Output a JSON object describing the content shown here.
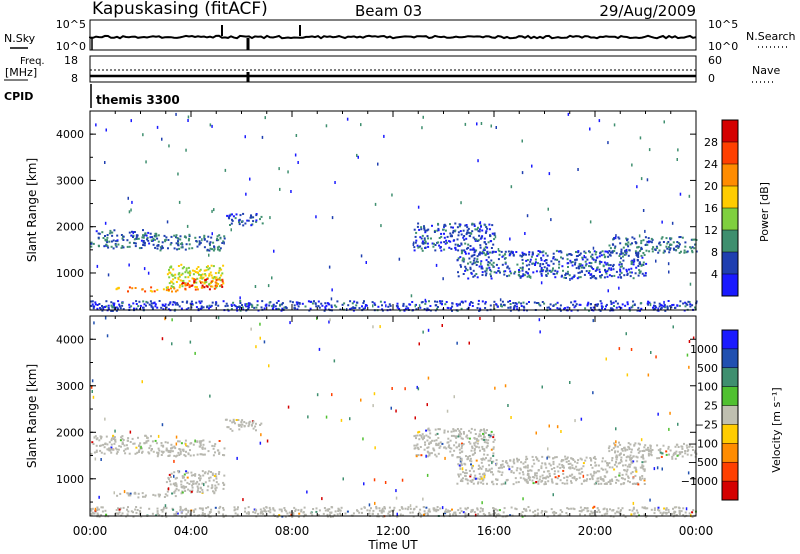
{
  "header": {
    "title": "Kapuskasing (fitACF)",
    "beam": "Beam 03",
    "date": "29/Aug/2009"
  },
  "noise_panel": {
    "left_label": "N.Sky",
    "left_ticks": [
      "10^5",
      "10^0"
    ],
    "right_ticks": [
      "10^5",
      "10^0"
    ],
    "right_label": "N.Search"
  },
  "freq_panel": {
    "left_label_line1": "Freq.",
    "left_label_line2": "[MHz]",
    "left_ticks": [
      "18",
      "8"
    ],
    "right_ticks": [
      "60",
      "0"
    ],
    "right_label": "Nave"
  },
  "cpid": {
    "label": "CPID",
    "program": "themis 3300"
  },
  "x_axis": {
    "ticks": [
      "00:00",
      "04:00",
      "08:00",
      "12:00",
      "16:00",
      "20:00",
      "00:00"
    ],
    "label": "Time UT"
  },
  "colors": {
    "power_scale": [
      "#1a1aff",
      "#1f3fb0",
      "#3f8f6f",
      "#7fcf3f",
      "#ffcc00",
      "#ff8c00",
      "#ff4000",
      "#d40000"
    ],
    "velocity_scale": [
      "#1a1aff",
      "#2050b0",
      "#3f8f6f",
      "#50c030",
      "#bfbfb0",
      "#ffcc00",
      "#ff8c00",
      "#ff4000",
      "#d40000"
    ],
    "ground_scatter": "#b8b8b0"
  },
  "chart_data": [
    {
      "type": "heatmap",
      "panel": "power",
      "ylabel": "Slant Range [km]",
      "xlabel": "Time UT",
      "xlim": [
        0,
        24
      ],
      "ylim": [
        200,
        4500
      ],
      "yticks": [
        "1000",
        "2000",
        "3000",
        "4000"
      ],
      "colorbar_label": "Power [dB]",
      "colorbar_ticks": [
        "4",
        "8",
        "12",
        "16",
        "20",
        "24",
        "28"
      ],
      "colorbar_range": [
        0,
        32
      ],
      "regions": [
        {
          "x": [
            0.0,
            2.6
          ],
          "y": [
            1550,
            1950
          ],
          "value": 7
        },
        {
          "x": [
            2.6,
            5.3
          ],
          "y": [
            1500,
            1850
          ],
          "value": 8
        },
        {
          "x": [
            3.0,
            5.3
          ],
          "y": [
            700,
            1200
          ],
          "value": 16
        },
        {
          "x": [
            3.6,
            5.3
          ],
          "y": [
            650,
            900
          ],
          "value": 26
        },
        {
          "x": [
            1.0,
            3.5
          ],
          "y": [
            620,
            720
          ],
          "value": 22
        },
        {
          "x": [
            5.3,
            6.8
          ],
          "y": [
            2050,
            2300
          ],
          "value": 6
        },
        {
          "x": [
            12.8,
            16.0
          ],
          "y": [
            1500,
            2100
          ],
          "value": 6
        },
        {
          "x": [
            14.5,
            22.0
          ],
          "y": [
            900,
            1500
          ],
          "value": 6
        },
        {
          "x": [
            20.5,
            24.0
          ],
          "y": [
            1450,
            1800
          ],
          "value": 8
        },
        {
          "x": [
            0.0,
            24.0
          ],
          "y": [
            200,
            420
          ],
          "value": 5
        }
      ]
    },
    {
      "type": "heatmap",
      "panel": "velocity",
      "ylabel": "Slant Range [km]",
      "xlabel": "Time UT",
      "xlim": [
        0,
        24
      ],
      "ylim": [
        200,
        4500
      ],
      "yticks": [
        "1000",
        "2000",
        "3000",
        "4000"
      ],
      "colorbar_label": "Velocity [m s⁻¹]",
      "colorbar_ticks": [
        "1000",
        "500",
        "100",
        "25",
        "−25",
        "−100",
        "−500",
        "−1000"
      ],
      "regions": [
        {
          "x": [
            0.0,
            2.6
          ],
          "y": [
            1550,
            1950
          ],
          "value": 0
        },
        {
          "x": [
            2.6,
            5.3
          ],
          "y": [
            1500,
            1850
          ],
          "value": 0
        },
        {
          "x": [
            3.0,
            5.3
          ],
          "y": [
            700,
            1200
          ],
          "value": 0
        },
        {
          "x": [
            1.0,
            3.5
          ],
          "y": [
            620,
            720
          ],
          "value": 0
        },
        {
          "x": [
            5.3,
            6.8
          ],
          "y": [
            2050,
            2300
          ],
          "value": 0
        },
        {
          "x": [
            12.8,
            16.0
          ],
          "y": [
            1500,
            2100
          ],
          "value": 0
        },
        {
          "x": [
            14.5,
            22.0
          ],
          "y": [
            900,
            1500
          ],
          "value": 0
        },
        {
          "x": [
            20.5,
            24.0
          ],
          "y": [
            1450,
            1800
          ],
          "value": 0
        },
        {
          "x": [
            0.0,
            24.0
          ],
          "y": [
            200,
            420
          ],
          "value": 0
        }
      ]
    }
  ]
}
